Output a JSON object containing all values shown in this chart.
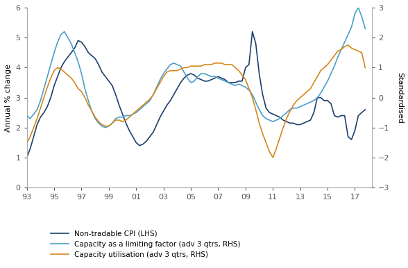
{
  "ylabel_left": "Annual % change",
  "ylabel_right": "Standardised",
  "ylim_left": [
    0,
    6
  ],
  "ylim_right": [
    -3,
    3
  ],
  "yticks_left": [
    0,
    1,
    2,
    3,
    4,
    5,
    6
  ],
  "yticks_right": [
    -3,
    -2,
    -1,
    0,
    1,
    2,
    3
  ],
  "xtick_labels": [
    "93",
    "95",
    "97",
    "99",
    "01",
    "03",
    "05",
    "07",
    "09",
    "11",
    "13",
    "15",
    "17"
  ],
  "color_cpi": "#1b3f6e",
  "color_capacity_factor": "#4a9fc8",
  "color_capacity_util": "#d4881a",
  "legend_labels": [
    "Non-tradable CPI (LHS)",
    "Capacity as a limiting factor (adv 3 qtrs, RHS)",
    "Capacity utilisation (adv 3 qtrs, RHS)"
  ],
  "nontradable_cpi_x": [
    1993.0,
    1993.25,
    1993.5,
    1993.75,
    1994.0,
    1994.25,
    1994.5,
    1994.75,
    1995.0,
    1995.25,
    1995.5,
    1995.75,
    1996.0,
    1996.25,
    1996.5,
    1996.75,
    1997.0,
    1997.25,
    1997.5,
    1997.75,
    1998.0,
    1998.25,
    1998.5,
    1998.75,
    1999.0,
    1999.25,
    1999.5,
    1999.75,
    2000.0,
    2000.25,
    2000.5,
    2000.75,
    2001.0,
    2001.25,
    2001.5,
    2001.75,
    2002.0,
    2002.25,
    2002.5,
    2002.75,
    2003.0,
    2003.25,
    2003.5,
    2003.75,
    2004.0,
    2004.25,
    2004.5,
    2004.75,
    2005.0,
    2005.25,
    2005.5,
    2005.75,
    2006.0,
    2006.25,
    2006.5,
    2006.75,
    2007.0,
    2007.25,
    2007.5,
    2007.75,
    2008.0,
    2008.25,
    2008.5,
    2008.75,
    2009.0,
    2009.25,
    2009.5,
    2009.75,
    2010.0,
    2010.25,
    2010.5,
    2010.75,
    2011.0,
    2011.25,
    2011.5,
    2011.75,
    2012.0,
    2012.25,
    2012.5,
    2012.75,
    2013.0,
    2013.25,
    2013.5,
    2013.75,
    2014.0,
    2014.25,
    2014.5,
    2014.75,
    2015.0,
    2015.25,
    2015.5,
    2015.75,
    2016.0,
    2016.25,
    2016.5,
    2016.75,
    2017.0,
    2017.25,
    2017.5,
    2017.75
  ],
  "nontradable_cpi": [
    1.0,
    1.3,
    1.7,
    2.1,
    2.35,
    2.5,
    2.7,
    3.0,
    3.4,
    3.7,
    4.0,
    4.2,
    4.35,
    4.5,
    4.65,
    4.9,
    4.85,
    4.7,
    4.5,
    4.4,
    4.3,
    4.1,
    3.85,
    3.7,
    3.55,
    3.4,
    3.1,
    2.75,
    2.45,
    2.15,
    1.9,
    1.7,
    1.5,
    1.4,
    1.45,
    1.55,
    1.7,
    1.85,
    2.1,
    2.35,
    2.55,
    2.75,
    2.9,
    3.1,
    3.3,
    3.5,
    3.65,
    3.75,
    3.8,
    3.75,
    3.65,
    3.6,
    3.55,
    3.55,
    3.6,
    3.65,
    3.7,
    3.65,
    3.6,
    3.5,
    3.5,
    3.5,
    3.55,
    3.55,
    4.0,
    4.1,
    5.2,
    4.8,
    3.8,
    3.1,
    2.65,
    2.5,
    2.45,
    2.4,
    2.35,
    2.25,
    2.2,
    2.15,
    2.15,
    2.1,
    2.1,
    2.15,
    2.2,
    2.25,
    2.5,
    3.0,
    3.0,
    2.9,
    2.9,
    2.8,
    2.4,
    2.35,
    2.4,
    2.4,
    1.7,
    1.6,
    1.9,
    2.4,
    2.5,
    2.6
  ],
  "capacity_factor_x": [
    1993.0,
    1993.25,
    1993.5,
    1993.75,
    1994.0,
    1994.25,
    1994.5,
    1994.75,
    1995.0,
    1995.25,
    1995.5,
    1995.75,
    1996.0,
    1996.25,
    1996.5,
    1996.75,
    1997.0,
    1997.25,
    1997.5,
    1997.75,
    1998.0,
    1998.25,
    1998.5,
    1998.75,
    1999.0,
    1999.25,
    1999.5,
    1999.75,
    2000.0,
    2000.25,
    2000.5,
    2000.75,
    2001.0,
    2001.25,
    2001.5,
    2001.75,
    2002.0,
    2002.25,
    2002.5,
    2002.75,
    2003.0,
    2003.25,
    2003.5,
    2003.75,
    2004.0,
    2004.25,
    2004.5,
    2004.75,
    2005.0,
    2005.25,
    2005.5,
    2005.75,
    2006.0,
    2006.25,
    2006.5,
    2006.75,
    2007.0,
    2007.25,
    2007.5,
    2007.75,
    2008.0,
    2008.25,
    2008.5,
    2008.75,
    2009.0,
    2009.25,
    2009.5,
    2009.75,
    2010.0,
    2010.25,
    2010.5,
    2010.75,
    2011.0,
    2011.25,
    2011.5,
    2011.75,
    2012.0,
    2012.25,
    2012.5,
    2012.75,
    2013.0,
    2013.25,
    2013.5,
    2013.75,
    2014.0,
    2014.25,
    2014.5,
    2014.75,
    2015.0,
    2015.25,
    2015.5,
    2015.75,
    2016.0,
    2016.25,
    2016.5,
    2016.75,
    2017.0,
    2017.25,
    2017.5,
    2017.75
  ],
  "capacity_factor": [
    -0.6,
    -0.7,
    -0.55,
    -0.4,
    -0.1,
    0.3,
    0.7,
    1.1,
    1.5,
    1.85,
    2.1,
    2.2,
    2.0,
    1.8,
    1.5,
    1.2,
    0.8,
    0.3,
    -0.1,
    -0.45,
    -0.7,
    -0.85,
    -0.95,
    -1.0,
    -0.95,
    -0.85,
    -0.7,
    -0.65,
    -0.65,
    -0.6,
    -0.6,
    -0.55,
    -0.5,
    -0.4,
    -0.3,
    -0.2,
    -0.1,
    0.1,
    0.35,
    0.6,
    0.8,
    0.95,
    1.1,
    1.15,
    1.1,
    1.05,
    0.85,
    0.65,
    0.5,
    0.55,
    0.7,
    0.8,
    0.8,
    0.75,
    0.7,
    0.7,
    0.65,
    0.6,
    0.55,
    0.5,
    0.45,
    0.4,
    0.45,
    0.4,
    0.35,
    0.25,
    0.1,
    -0.15,
    -0.4,
    -0.6,
    -0.7,
    -0.75,
    -0.8,
    -0.75,
    -0.7,
    -0.6,
    -0.5,
    -0.4,
    -0.35,
    -0.35,
    -0.3,
    -0.25,
    -0.2,
    -0.15,
    -0.1,
    0.0,
    0.15,
    0.35,
    0.55,
    0.8,
    1.05,
    1.35,
    1.6,
    1.85,
    2.1,
    2.35,
    2.8,
    3.0,
    2.7,
    2.3
  ],
  "capacity_util_x": [
    1993.0,
    1993.25,
    1993.5,
    1993.75,
    1994.0,
    1994.25,
    1994.5,
    1994.75,
    1995.0,
    1995.25,
    1995.5,
    1995.75,
    1996.0,
    1996.25,
    1996.5,
    1996.75,
    1997.0,
    1997.25,
    1997.5,
    1997.75,
    1998.0,
    1998.25,
    1998.5,
    1998.75,
    1999.0,
    1999.25,
    1999.5,
    1999.75,
    2000.0,
    2000.25,
    2000.5,
    2000.75,
    2001.0,
    2001.25,
    2001.5,
    2001.75,
    2002.0,
    2002.25,
    2002.5,
    2002.75,
    2003.0,
    2003.25,
    2003.5,
    2003.75,
    2004.0,
    2004.25,
    2004.5,
    2004.75,
    2005.0,
    2005.25,
    2005.5,
    2005.75,
    2006.0,
    2006.25,
    2006.5,
    2006.75,
    2007.0,
    2007.25,
    2007.5,
    2007.75,
    2008.0,
    2008.25,
    2008.5,
    2008.75,
    2009.0,
    2009.25,
    2009.5,
    2009.75,
    2010.0,
    2010.25,
    2010.5,
    2010.75,
    2011.0,
    2011.25,
    2011.5,
    2011.75,
    2012.0,
    2012.25,
    2012.5,
    2012.75,
    2013.0,
    2013.25,
    2013.5,
    2013.75,
    2014.0,
    2014.25,
    2014.5,
    2014.75,
    2015.0,
    2015.25,
    2015.5,
    2015.75,
    2016.0,
    2016.25,
    2016.5,
    2016.75,
    2017.0,
    2017.25,
    2017.5,
    2017.75
  ],
  "capacity_util": [
    -1.5,
    -1.3,
    -1.0,
    -0.7,
    -0.35,
    0.0,
    0.35,
    0.65,
    0.9,
    1.0,
    0.95,
    0.85,
    0.75,
    0.65,
    0.5,
    0.3,
    0.2,
    0.0,
    -0.25,
    -0.45,
    -0.65,
    -0.8,
    -0.9,
    -0.95,
    -0.95,
    -0.85,
    -0.75,
    -0.75,
    -0.8,
    -0.75,
    -0.65,
    -0.55,
    -0.45,
    -0.35,
    -0.25,
    -0.15,
    -0.05,
    0.1,
    0.3,
    0.5,
    0.7,
    0.85,
    0.9,
    0.9,
    0.9,
    0.95,
    1.0,
    1.0,
    1.05,
    1.05,
    1.05,
    1.05,
    1.1,
    1.1,
    1.1,
    1.15,
    1.15,
    1.15,
    1.1,
    1.1,
    1.1,
    1.0,
    0.9,
    0.75,
    0.6,
    0.3,
    0.0,
    -0.4,
    -0.85,
    -1.2,
    -1.5,
    -1.8,
    -2.0,
    -1.7,
    -1.35,
    -1.0,
    -0.7,
    -0.45,
    -0.25,
    -0.1,
    0.0,
    0.1,
    0.2,
    0.3,
    0.5,
    0.7,
    0.9,
    1.0,
    1.1,
    1.25,
    1.4,
    1.55,
    1.6,
    1.7,
    1.75,
    1.65,
    1.6,
    1.55,
    1.5,
    1.0
  ]
}
